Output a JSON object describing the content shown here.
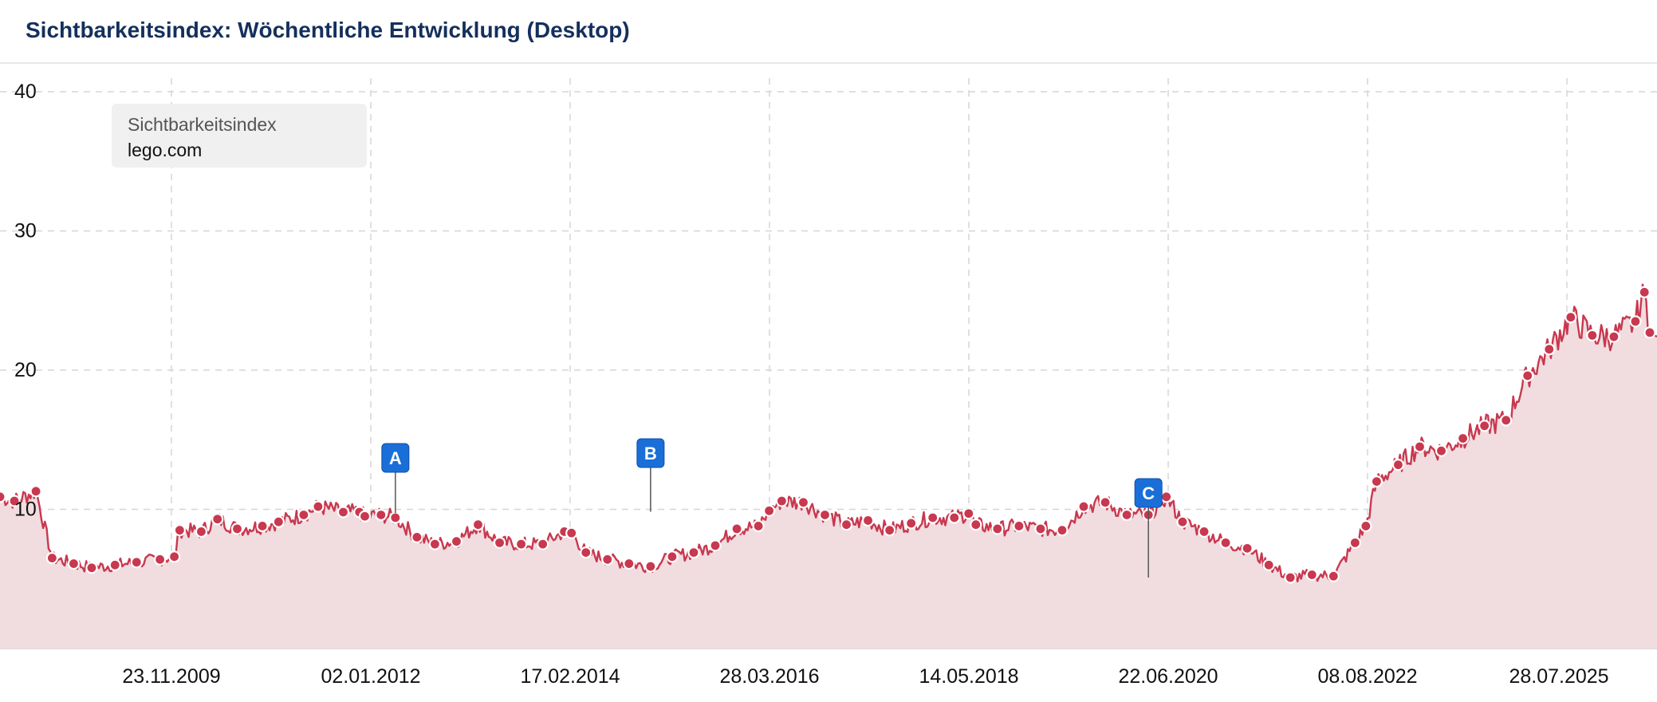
{
  "header": {
    "title": "Sichtbarkeitsindex: Wöchentliche Entwicklung (Desktop)"
  },
  "legend": {
    "title": "Sichtbarkeitsindex",
    "site": "lego.com"
  },
  "colors": {
    "line": "#c8384f",
    "area": "#f1dde0",
    "title": "#14305c",
    "marker": "#1a6ed8",
    "grid": "#d6d6d6"
  },
  "chart_data": {
    "type": "area",
    "title": "Sichtbarkeitsindex: Wöchentliche Entwicklung (Desktop)",
    "series_label": "Sichtbarkeitsindex",
    "domain": "lego.com",
    "x_ticks": [
      "23.11.2009",
      "02.01.2012",
      "17.02.2014",
      "28.03.2016",
      "14.05.2018",
      "22.06.2020",
      "08.08.2022",
      "28.07.2025"
    ],
    "y_ticks": [
      10,
      20,
      30,
      40
    ],
    "ylim": [
      0,
      41
    ],
    "xlim": [
      "2008-01-14",
      "2025-09-15"
    ],
    "grid": true,
    "legend_position": "top-left",
    "series": [
      {
        "name": "lego.com",
        "points": [
          [
            "2008-01-14",
            10.9
          ],
          [
            "2008-03-10",
            10.6
          ],
          [
            "2008-06-02",
            11.3
          ],
          [
            "2008-08-04",
            6.5
          ],
          [
            "2008-10-27",
            6.1
          ],
          [
            "2009-01-05",
            5.8
          ],
          [
            "2009-04-06",
            6.0
          ],
          [
            "2009-06-29",
            6.2
          ],
          [
            "2009-09-28",
            6.4
          ],
          [
            "2009-11-23",
            6.6
          ],
          [
            "2009-12-14",
            8.5
          ],
          [
            "2010-03-08",
            8.4
          ],
          [
            "2010-05-10",
            9.3
          ],
          [
            "2010-07-26",
            8.6
          ],
          [
            "2010-11-01",
            8.8
          ],
          [
            "2011-01-03",
            9.1
          ],
          [
            "2011-04-11",
            9.6
          ],
          [
            "2011-06-06",
            10.2
          ],
          [
            "2011-09-12",
            9.8
          ],
          [
            "2011-11-14",
            9.8
          ],
          [
            "2011-12-05",
            9.5
          ],
          [
            "2012-02-06",
            9.6
          ],
          [
            "2012-04-02",
            9.4
          ],
          [
            "2012-06-25",
            8.0
          ],
          [
            "2012-09-03",
            7.5
          ],
          [
            "2012-11-26",
            7.7
          ],
          [
            "2013-02-18",
            8.9
          ],
          [
            "2013-05-13",
            7.6
          ],
          [
            "2013-08-05",
            7.5
          ],
          [
            "2013-10-28",
            7.5
          ],
          [
            "2014-01-20",
            8.4
          ],
          [
            "2014-02-17",
            8.3
          ],
          [
            "2014-04-14",
            6.9
          ],
          [
            "2014-07-07",
            6.4
          ],
          [
            "2014-09-29",
            6.1
          ],
          [
            "2014-12-22",
            5.9
          ],
          [
            "2015-03-16",
            6.6
          ],
          [
            "2015-06-08",
            6.9
          ],
          [
            "2015-08-31",
            7.4
          ],
          [
            "2015-11-23",
            8.6
          ],
          [
            "2016-02-15",
            8.8
          ],
          [
            "2016-03-28",
            9.9
          ],
          [
            "2016-05-16",
            10.6
          ],
          [
            "2016-08-08",
            10.5
          ],
          [
            "2016-10-31",
            9.6
          ],
          [
            "2017-01-23",
            8.9
          ],
          [
            "2017-04-17",
            9.2
          ],
          [
            "2017-07-10",
            8.5
          ],
          [
            "2017-10-02",
            9.0
          ],
          [
            "2017-12-25",
            9.4
          ],
          [
            "2018-03-19",
            9.4
          ],
          [
            "2018-05-14",
            9.7
          ],
          [
            "2018-06-11",
            8.9
          ],
          [
            "2018-09-03",
            8.6
          ],
          [
            "2018-11-26",
            8.8
          ],
          [
            "2019-02-18",
            8.6
          ],
          [
            "2019-05-13",
            8.5
          ],
          [
            "2019-08-05",
            10.2
          ],
          [
            "2019-10-28",
            10.5
          ],
          [
            "2020-01-20",
            9.6
          ],
          [
            "2020-04-13",
            9.6
          ],
          [
            "2020-06-22",
            10.9
          ],
          [
            "2020-08-24",
            9.1
          ],
          [
            "2020-11-16",
            8.4
          ],
          [
            "2021-02-08",
            7.6
          ],
          [
            "2021-05-03",
            7.2
          ],
          [
            "2021-07-26",
            6.0
          ],
          [
            "2021-10-18",
            5.1
          ],
          [
            "2022-01-10",
            5.3
          ],
          [
            "2022-04-04",
            5.2
          ],
          [
            "2022-06-27",
            7.6
          ],
          [
            "2022-08-08",
            8.8
          ],
          [
            "2022-09-19",
            12.0
          ],
          [
            "2022-12-12",
            13.2
          ],
          [
            "2023-03-06",
            14.5
          ],
          [
            "2023-05-29",
            14.2
          ],
          [
            "2023-08-21",
            15.1
          ],
          [
            "2023-11-13",
            16.0
          ],
          [
            "2024-02-05",
            16.4
          ],
          [
            "2024-04-29",
            19.6
          ],
          [
            "2024-07-22",
            21.5
          ],
          [
            "2024-10-14",
            23.8
          ],
          [
            "2025-01-06",
            22.5
          ],
          [
            "2025-03-31",
            22.4
          ],
          [
            "2025-06-23",
            23.5
          ],
          [
            "2025-07-28",
            25.6
          ],
          [
            "2025-08-18",
            22.7
          ]
        ]
      }
    ],
    "annotations": [
      {
        "label": "A",
        "x": "2012-04-02",
        "y": 9.5
      },
      {
        "label": "B",
        "x": "2014-12-22",
        "y": 9.6
      },
      {
        "label": "C",
        "x": "2020-04-13",
        "y": 5.1
      }
    ]
  }
}
